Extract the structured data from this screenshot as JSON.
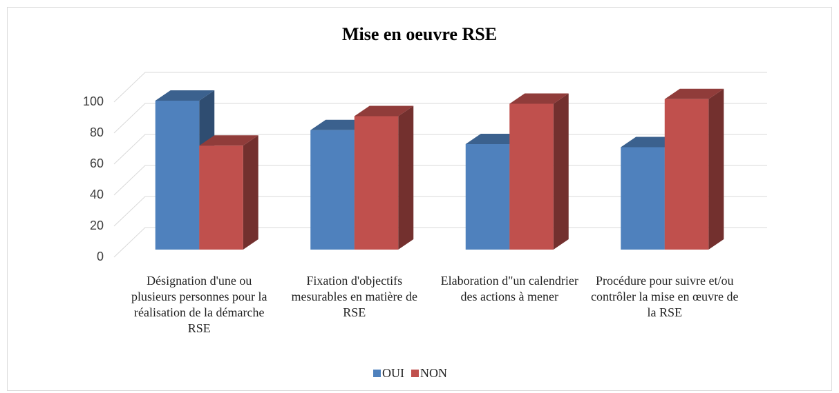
{
  "chart_data": {
    "type": "bar3d",
    "title": "Mise en oeuvre RSE",
    "categories": [
      "Désignation d'une ou plusieurs personnes pour la réalisation de la démarche RSE",
      "Fixation d'objectifs mesurables en matière de RSE",
      "Elaboration d\"un calendrier des actions à mener",
      "Procédure pour suivre et/ou contrôler la mise en œuvre de la RSE"
    ],
    "series": [
      {
        "name": "OUI",
        "color": "#4f81bd",
        "values": [
          96,
          77,
          68,
          66
        ]
      },
      {
        "name": "NON",
        "color": "#c0504d",
        "values": [
          67,
          86,
          94,
          97
        ]
      }
    ],
    "ylim": [
      0,
      100
    ],
    "yticks": [
      0,
      20,
      40,
      60,
      80,
      100
    ],
    "grid": true,
    "legend": "bottom"
  }
}
